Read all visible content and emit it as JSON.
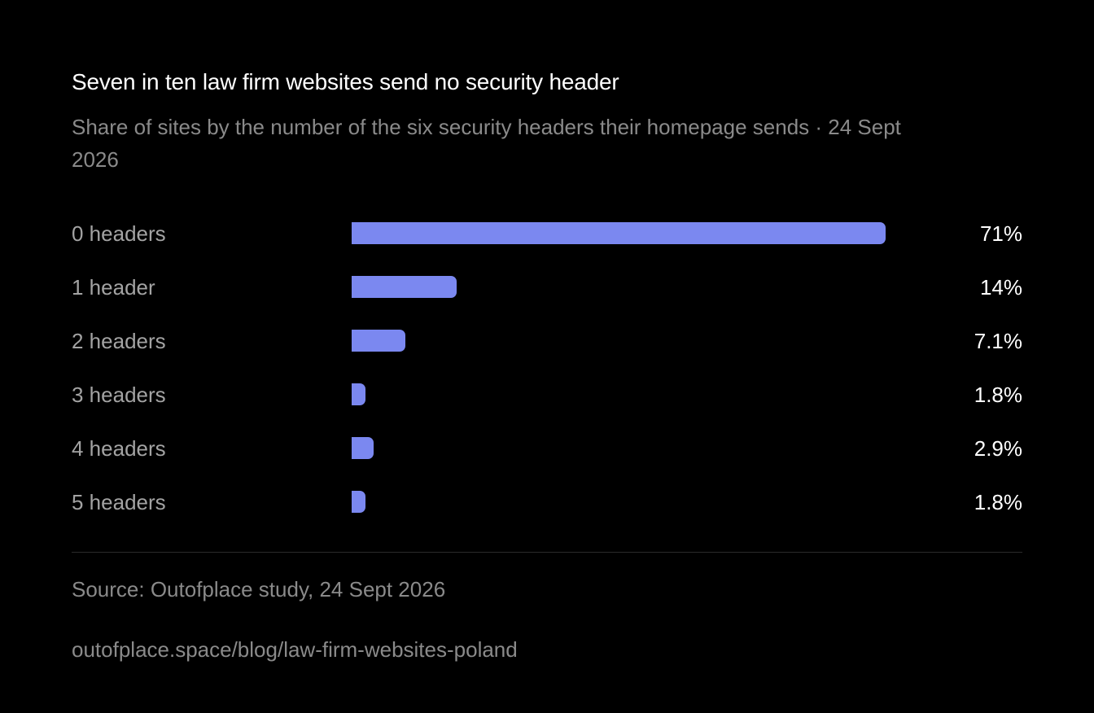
{
  "header": {
    "title": "Seven in ten law firm websites send no security header",
    "subtitle": "Share of sites by the number of the six security headers their homepage sends · 24 Sept 2026"
  },
  "chart_data": {
    "type": "bar",
    "orientation": "horizontal",
    "title": "Seven in ten law firm websites send no security header",
    "subtitle": "Share of sites by the number of the six security headers their homepage sends · 24 Sept 2026",
    "categories": [
      "0 headers",
      "1 header",
      "2 headers",
      "3 headers",
      "4 headers",
      "5 headers"
    ],
    "values": [
      71,
      14,
      7.1,
      1.8,
      2.9,
      1.8
    ],
    "value_labels": [
      "71%",
      "14%",
      "7.1%",
      "1.8%",
      "2.9%",
      "1.8%"
    ],
    "unit": "%",
    "xlim": [
      0,
      71
    ],
    "grid": false,
    "bar_color": "#7b88f0"
  },
  "footer": {
    "source": "Source: Outofplace study, 24 Sept 2026",
    "url": "outofplace.space/blog/law-firm-websites-poland"
  },
  "colors": {
    "background": "#000000",
    "bar": "#7b88f0",
    "title": "#ffffff",
    "muted_text": "#8a8a8a"
  }
}
